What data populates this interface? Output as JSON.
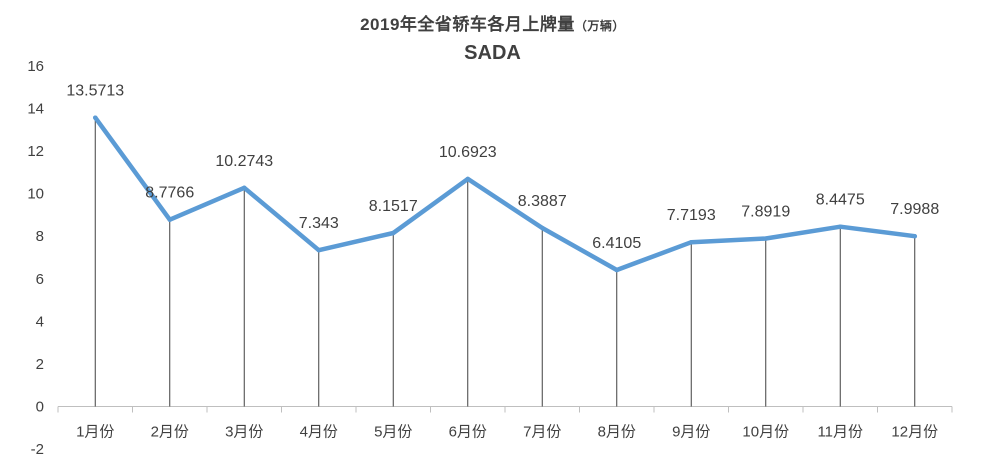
{
  "chart_data": {
    "type": "line",
    "title": "2019年全省轿车各月上牌量",
    "title_unit": "（万辆）",
    "subtitle": "SADA",
    "categories": [
      "1月份",
      "2月份",
      "3月份",
      "4月份",
      "5月份",
      "6月份",
      "7月份",
      "8月份",
      "9月份",
      "10月份",
      "11月份",
      "12月份"
    ],
    "series": [
      {
        "values": [
          13.5713,
          8.7766,
          10.2743,
          7.343,
          8.1517,
          10.6923,
          8.3887,
          6.4105,
          7.7193,
          7.8919,
          8.4475,
          7.9988
        ],
        "labels": [
          "13.5713",
          "8.7766",
          "10.2743",
          "7.343",
          "8.1517",
          "10.6923",
          "8.3887",
          "6.4105",
          "7.7193",
          "7.8919",
          "8.4475",
          "7.9988"
        ],
        "color": "#5B9BD5"
      }
    ],
    "ylim": [
      -2,
      16
    ],
    "yticks": [
      -2,
      0,
      2,
      4,
      6,
      8,
      10,
      12,
      14,
      16
    ],
    "drop_lines": true,
    "grid": false,
    "legend": "none",
    "xlabel": "",
    "ylabel": ""
  }
}
